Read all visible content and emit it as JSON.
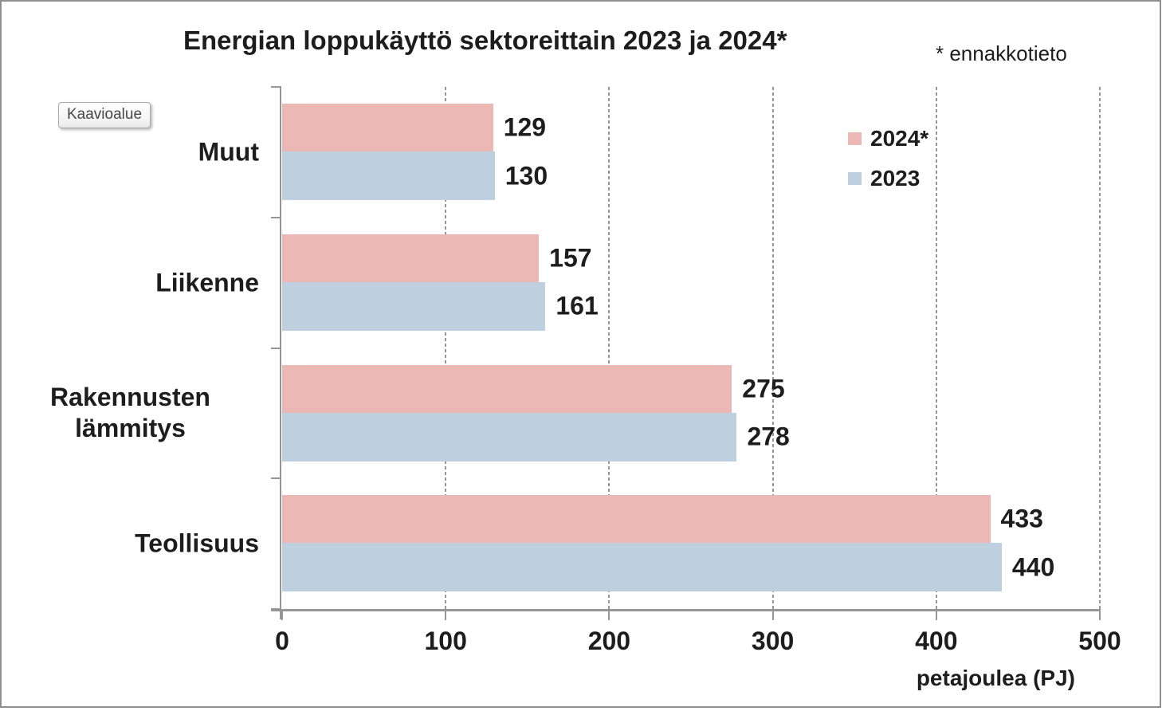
{
  "window": {
    "tooltip": "Kaavioalue"
  },
  "chart_data": {
    "type": "bar",
    "orientation": "horizontal",
    "title": "Energian loppukäyttö sektoreittain 2023 ja 2024*",
    "note": "* ennakkotieto",
    "categories": [
      "Muut",
      "Liikenne",
      "Rakennusten lämmitys",
      "Teollisuus"
    ],
    "series": [
      {
        "name": "2024*",
        "color": "#ecb8b6",
        "values": [
          129,
          157,
          275,
          433
        ]
      },
      {
        "name": "2023",
        "color": "#bed0dd",
        "values": [
          130,
          161,
          278,
          440
        ]
      }
    ],
    "xlabel": "petajoulea (PJ)",
    "x_ticks": [
      0,
      100,
      200,
      300,
      400,
      500
    ],
    "xlim": [
      0,
      500
    ],
    "grid": "vertical-dashed",
    "legend_position": "top-right"
  },
  "colors": {
    "axis": "#969696",
    "grid": "#969696",
    "text": "#1d1d1d",
    "frame_border": "#8f8f8f",
    "tooltip_text": "#474747"
  }
}
